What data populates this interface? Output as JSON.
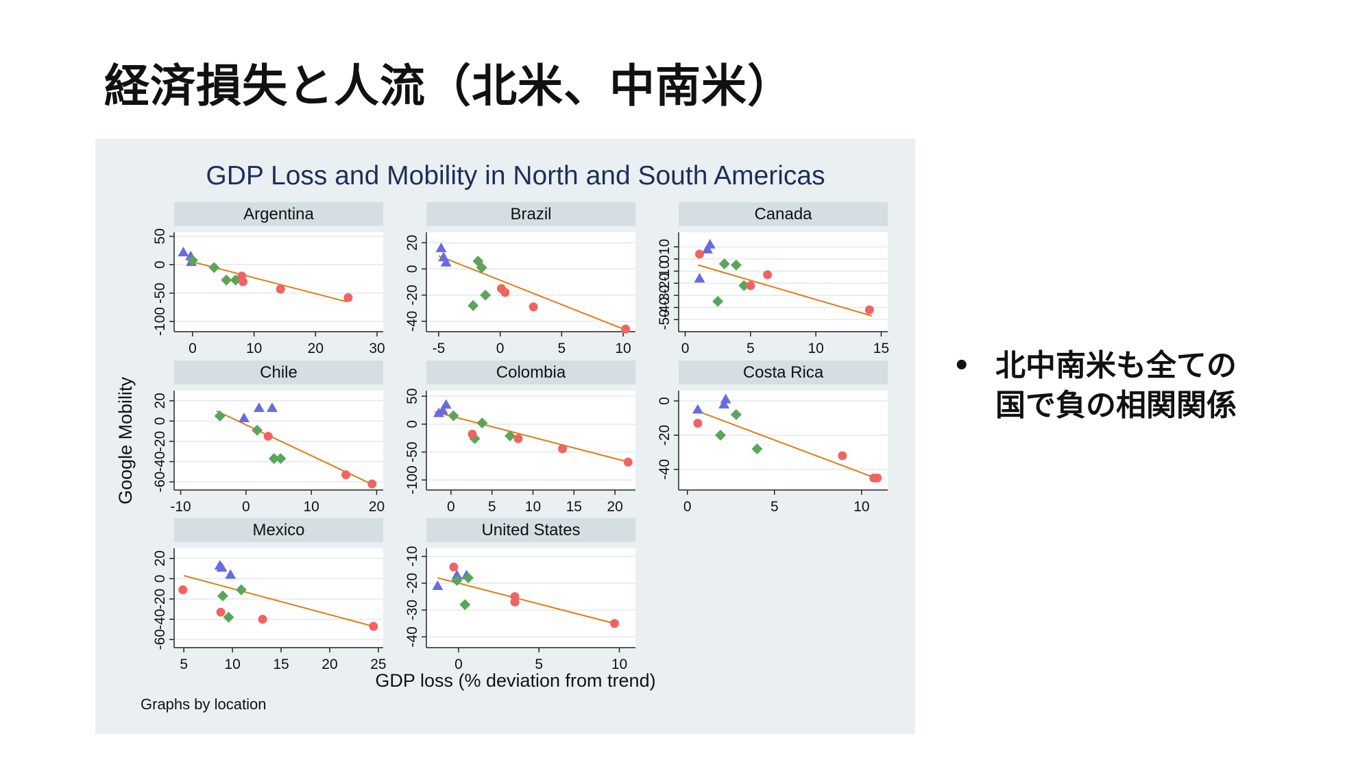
{
  "slide": {
    "title": "経済損失と人流（北米、中南米）",
    "bullets": [
      "北中南米も全ての国で負の相関関係"
    ]
  },
  "colors": {
    "panel_bg": "#eaf0f2",
    "strip_bg": "#d5dee3",
    "plot_bg": "#ffffff",
    "title_color": "#1f2d5a",
    "fit_line": "#e07b10",
    "series_triangle": "#6a6ae0",
    "series_diamond": "#5aa55a",
    "series_circle": "#ef6461"
  },
  "chart_data": {
    "type": "scatter",
    "title": "GDP Loss and Mobility in North and South Americas",
    "xlabel": "GDP loss (% deviation from trend)",
    "ylabel": "Google Mobility",
    "note": "Graphs by location",
    "fit": "linear",
    "panels": [
      {
        "name": "Argentina",
        "xlim": [
          -3,
          31
        ],
        "ylim": [
          -118,
          57
        ],
        "xticks": [
          0,
          10,
          20,
          30
        ],
        "yticks": [
          -100,
          -50,
          0,
          50
        ],
        "yticklabels": [
          "-100",
          "-50",
          "0",
          "50"
        ],
        "fit_line": [
          [
            0,
            5
          ],
          [
            25,
            -65
          ]
        ],
        "points": [
          {
            "x": -1.5,
            "y": 22,
            "m": "triangle"
          },
          {
            "x": -0.3,
            "y": 15,
            "m": "triangle"
          },
          {
            "x": -0.2,
            "y": 5,
            "m": "triangle"
          },
          {
            "x": 0,
            "y": 8,
            "m": "diamond"
          },
          {
            "x": 3.5,
            "y": -5,
            "m": "diamond"
          },
          {
            "x": 5.5,
            "y": -27,
            "m": "diamond"
          },
          {
            "x": 7,
            "y": -27,
            "m": "diamond"
          },
          {
            "x": 8,
            "y": -20,
            "m": "circle"
          },
          {
            "x": 8.2,
            "y": -30,
            "m": "circle"
          },
          {
            "x": 14.3,
            "y": -43,
            "m": "circle"
          },
          {
            "x": 25.3,
            "y": -58,
            "m": "circle"
          }
        ]
      },
      {
        "name": "Brazil",
        "xlim": [
          -6,
          11
        ],
        "ylim": [
          -48,
          28
        ],
        "xticks": [
          -5,
          0,
          5,
          10
        ],
        "yticks": [
          -40,
          -20,
          0,
          20
        ],
        "yticklabels": [
          "-40",
          "-20",
          "0",
          "20"
        ],
        "fit_line": [
          [
            -5,
            10
          ],
          [
            10.3,
            -47
          ]
        ],
        "points": [
          {
            "x": -4.8,
            "y": 16,
            "m": "triangle"
          },
          {
            "x": -4.6,
            "y": 9,
            "m": "triangle"
          },
          {
            "x": -4.4,
            "y": 5,
            "m": "triangle"
          },
          {
            "x": -1.8,
            "y": 6,
            "m": "diamond"
          },
          {
            "x": -1.5,
            "y": 1,
            "m": "diamond"
          },
          {
            "x": -1.2,
            "y": -20,
            "m": "diamond"
          },
          {
            "x": -2.2,
            "y": -28,
            "m": "diamond"
          },
          {
            "x": 0.1,
            "y": -15,
            "m": "circle"
          },
          {
            "x": 0.4,
            "y": -18,
            "m": "circle"
          },
          {
            "x": 2.7,
            "y": -29,
            "m": "circle"
          },
          {
            "x": 10.2,
            "y": -46,
            "m": "circle"
          }
        ]
      },
      {
        "name": "Canada",
        "xlim": [
          -0.5,
          15.5
        ],
        "ylim": [
          -60,
          22
        ],
        "xticks": [
          0,
          5,
          10,
          15
        ],
        "yticks": [
          -50,
          -40,
          -30,
          -20,
          -10,
          0,
          10
        ],
        "yticklabels": [
          "-50",
          "-40",
          "-30",
          "-20",
          "-10",
          "0",
          "10"
        ],
        "fit_line": [
          [
            1,
            -5
          ],
          [
            14.3,
            -47
          ]
        ],
        "points": [
          {
            "x": 1.7,
            "y": 8,
            "m": "triangle"
          },
          {
            "x": 1.9,
            "y": 12,
            "m": "triangle"
          },
          {
            "x": 1.1,
            "y": -16,
            "m": "triangle"
          },
          {
            "x": 3,
            "y": -4,
            "m": "diamond"
          },
          {
            "x": 3.9,
            "y": -5,
            "m": "diamond"
          },
          {
            "x": 4.5,
            "y": -22,
            "m": "diamond"
          },
          {
            "x": 2.5,
            "y": -35,
            "m": "diamond"
          },
          {
            "x": 1.1,
            "y": 4,
            "m": "circle"
          },
          {
            "x": 5,
            "y": -22,
            "m": "circle"
          },
          {
            "x": 6.3,
            "y": -13,
            "m": "circle"
          },
          {
            "x": 14.1,
            "y": -42,
            "m": "circle"
          }
        ]
      },
      {
        "name": "Chile",
        "xlim": [
          -11,
          21
        ],
        "ylim": [
          -68,
          30
        ],
        "xticks": [
          -10,
          0,
          10,
          20
        ],
        "yticks": [
          -60,
          -40,
          -20,
          0,
          20
        ],
        "yticklabels": [
          "-60",
          "-40",
          "-20",
          "0",
          "20"
        ],
        "fit_line": [
          [
            -4.5,
            10
          ],
          [
            19.5,
            -63
          ]
        ],
        "points": [
          {
            "x": 2,
            "y": 13,
            "m": "triangle"
          },
          {
            "x": 4,
            "y": 13,
            "m": "triangle"
          },
          {
            "x": -0.3,
            "y": 3,
            "m": "triangle"
          },
          {
            "x": -4,
            "y": 5,
            "m": "diamond"
          },
          {
            "x": 1.7,
            "y": -9,
            "m": "diamond"
          },
          {
            "x": 4.3,
            "y": -37,
            "m": "diamond"
          },
          {
            "x": 5.3,
            "y": -37,
            "m": "diamond"
          },
          {
            "x": 3.4,
            "y": -15,
            "m": "circle"
          },
          {
            "x": 15.3,
            "y": -53,
            "m": "circle"
          },
          {
            "x": 19.3,
            "y": -62,
            "m": "circle"
          }
        ]
      },
      {
        "name": "Colombia",
        "xlim": [
          -3,
          22.5
        ],
        "ylim": [
          -118,
          60
        ],
        "xticks": [
          0,
          5,
          10,
          15,
          20
        ],
        "yticks": [
          -100,
          -50,
          0,
          50
        ],
        "yticklabels": [
          "-100",
          "-50",
          "0",
          "50"
        ],
        "fit_line": [
          [
            -2,
            22
          ],
          [
            21.7,
            -68
          ]
        ],
        "points": [
          {
            "x": -1.5,
            "y": 20,
            "m": "triangle"
          },
          {
            "x": -1,
            "y": 25,
            "m": "triangle"
          },
          {
            "x": -0.6,
            "y": 35,
            "m": "triangle"
          },
          {
            "x": 0.3,
            "y": 15,
            "m": "diamond"
          },
          {
            "x": 3.8,
            "y": 2,
            "m": "diamond"
          },
          {
            "x": 2.9,
            "y": -26,
            "m": "diamond"
          },
          {
            "x": 7.2,
            "y": -21,
            "m": "diamond"
          },
          {
            "x": 2.6,
            "y": -18,
            "m": "circle"
          },
          {
            "x": 8.2,
            "y": -26,
            "m": "circle"
          },
          {
            "x": 13.6,
            "y": -44,
            "m": "circle"
          },
          {
            "x": 21.6,
            "y": -68,
            "m": "circle"
          }
        ]
      },
      {
        "name": "Costa Rica",
        "xlim": [
          -0.5,
          11.5
        ],
        "ylim": [
          -52,
          6
        ],
        "xticks": [
          0,
          5,
          10
        ],
        "yticks": [
          -40,
          -20,
          0
        ],
        "yticklabels": [
          "-40",
          "-20",
          "0"
        ],
        "fit_line": [
          [
            0.6,
            -6
          ],
          [
            10.8,
            -45
          ]
        ],
        "points": [
          {
            "x": 0.6,
            "y": -5,
            "m": "triangle"
          },
          {
            "x": 2.1,
            "y": -2,
            "m": "triangle"
          },
          {
            "x": 2.2,
            "y": 1,
            "m": "triangle"
          },
          {
            "x": 2.8,
            "y": -8,
            "m": "diamond"
          },
          {
            "x": 1.9,
            "y": -20,
            "m": "diamond"
          },
          {
            "x": 4,
            "y": -28,
            "m": "diamond"
          },
          {
            "x": 0.6,
            "y": -13,
            "m": "circle"
          },
          {
            "x": 8.9,
            "y": -32,
            "m": "circle"
          },
          {
            "x": 10.7,
            "y": -45,
            "m": "circle"
          },
          {
            "x": 10.9,
            "y": -45,
            "m": "circle"
          }
        ]
      },
      {
        "name": "Mexico",
        "xlim": [
          4,
          25.5
        ],
        "ylim": [
          -68,
          30
        ],
        "xticks": [
          5,
          10,
          15,
          20,
          25
        ],
        "yticks": [
          -60,
          -40,
          -20,
          0,
          20
        ],
        "yticklabels": [
          "-60",
          "-40",
          "-20",
          "0",
          "20"
        ],
        "fit_line": [
          [
            5,
            3
          ],
          [
            24.5,
            -47
          ]
        ],
        "points": [
          {
            "x": 8.7,
            "y": 13,
            "m": "triangle"
          },
          {
            "x": 8.9,
            "y": 11,
            "m": "triangle"
          },
          {
            "x": 9.8,
            "y": 4,
            "m": "triangle"
          },
          {
            "x": 10.9,
            "y": -11,
            "m": "diamond"
          },
          {
            "x": 9,
            "y": -17,
            "m": "diamond"
          },
          {
            "x": 9.6,
            "y": -38,
            "m": "diamond"
          },
          {
            "x": 4.9,
            "y": -11,
            "m": "circle"
          },
          {
            "x": 8.8,
            "y": -33,
            "m": "circle"
          },
          {
            "x": 13.1,
            "y": -40,
            "m": "circle"
          },
          {
            "x": 24.5,
            "y": -47,
            "m": "circle"
          }
        ]
      },
      {
        "name": "United States",
        "xlim": [
          -2,
          11
        ],
        "ylim": [
          -44,
          -7
        ],
        "xticks": [
          0,
          5,
          10
        ],
        "yticks": [
          -40,
          -30,
          -20,
          -10
        ],
        "yticklabels": [
          "-40",
          "-30",
          "-20",
          "-10"
        ],
        "fit_line": [
          [
            -1.3,
            -18
          ],
          [
            9.7,
            -35
          ]
        ],
        "points": [
          {
            "x": -1.3,
            "y": -21,
            "m": "triangle"
          },
          {
            "x": -0.1,
            "y": -17,
            "m": "triangle"
          },
          {
            "x": 0.5,
            "y": -17,
            "m": "triangle"
          },
          {
            "x": -0.1,
            "y": -19,
            "m": "diamond"
          },
          {
            "x": 0.6,
            "y": -18,
            "m": "diamond"
          },
          {
            "x": 0.4,
            "y": -28,
            "m": "diamond"
          },
          {
            "x": -0.3,
            "y": -14,
            "m": "circle"
          },
          {
            "x": 3.5,
            "y": -25,
            "m": "circle"
          },
          {
            "x": 3.5,
            "y": -27,
            "m": "circle"
          },
          {
            "x": 9.7,
            "y": -35,
            "m": "circle"
          }
        ]
      }
    ]
  }
}
